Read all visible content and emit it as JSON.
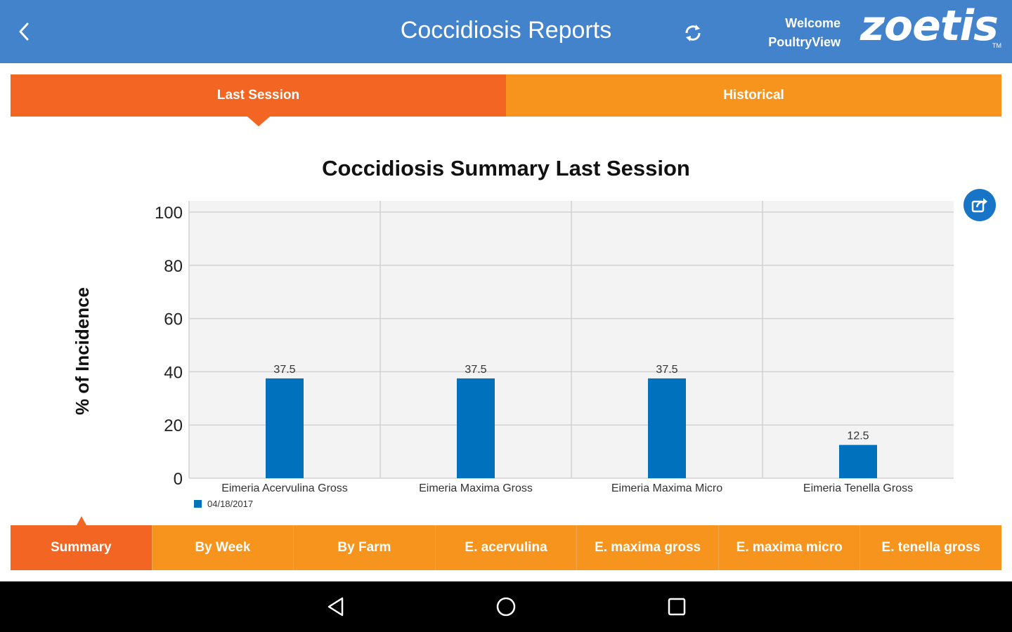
{
  "header": {
    "title": "Coccidiosis Reports",
    "welcome_line1": "Welcome",
    "welcome_line2": "PoultryView",
    "logo_text": "zoetis",
    "logo_tm": "TM",
    "bg_color": "#4283cc"
  },
  "top_tabs": [
    {
      "label": "Last Session",
      "active": true
    },
    {
      "label": "Historical",
      "active": false
    }
  ],
  "chart_data": {
    "type": "bar",
    "title": "Coccidiosis Summary Last Session",
    "ylabel": "% of Incidence",
    "xlabel": "",
    "ylim": [
      0,
      100
    ],
    "yticks": [
      0,
      20,
      40,
      60,
      80,
      100
    ],
    "grid": true,
    "categories": [
      "Eimeria Acervulina Gross",
      "Eimeria Maxima Gross",
      "Eimeria Maxima Micro",
      "Eimeria Tenella Gross"
    ],
    "series": [
      {
        "name": "04/18/2017",
        "values": [
          37.5,
          37.5,
          37.5,
          12.5
        ],
        "color": "#0071bc"
      }
    ],
    "data_labels": [
      "37.5",
      "37.5",
      "37.5",
      "12.5"
    ],
    "legend_position": "bottom-left"
  },
  "bottom_tabs": [
    {
      "label": "Summary",
      "active": true
    },
    {
      "label": "By Week",
      "active": false
    },
    {
      "label": "By Farm",
      "active": false
    },
    {
      "label": "E. acervulina",
      "active": false
    },
    {
      "label": "E. maxima gross",
      "active": false
    },
    {
      "label": "E. maxima micro",
      "active": false
    },
    {
      "label": "E. tenella gross",
      "active": false
    }
  ],
  "icons": {
    "back": "chevron-left-icon",
    "sync": "sync-icon",
    "share": "share-icon",
    "nav_back": "nav-back-icon",
    "nav_home": "nav-home-icon",
    "nav_recents": "nav-recents-icon"
  },
  "colors": {
    "tab_active": "#f26522",
    "tab_inactive": "#f7941e",
    "bar": "#0071bc",
    "share_button": "#1774c6"
  }
}
